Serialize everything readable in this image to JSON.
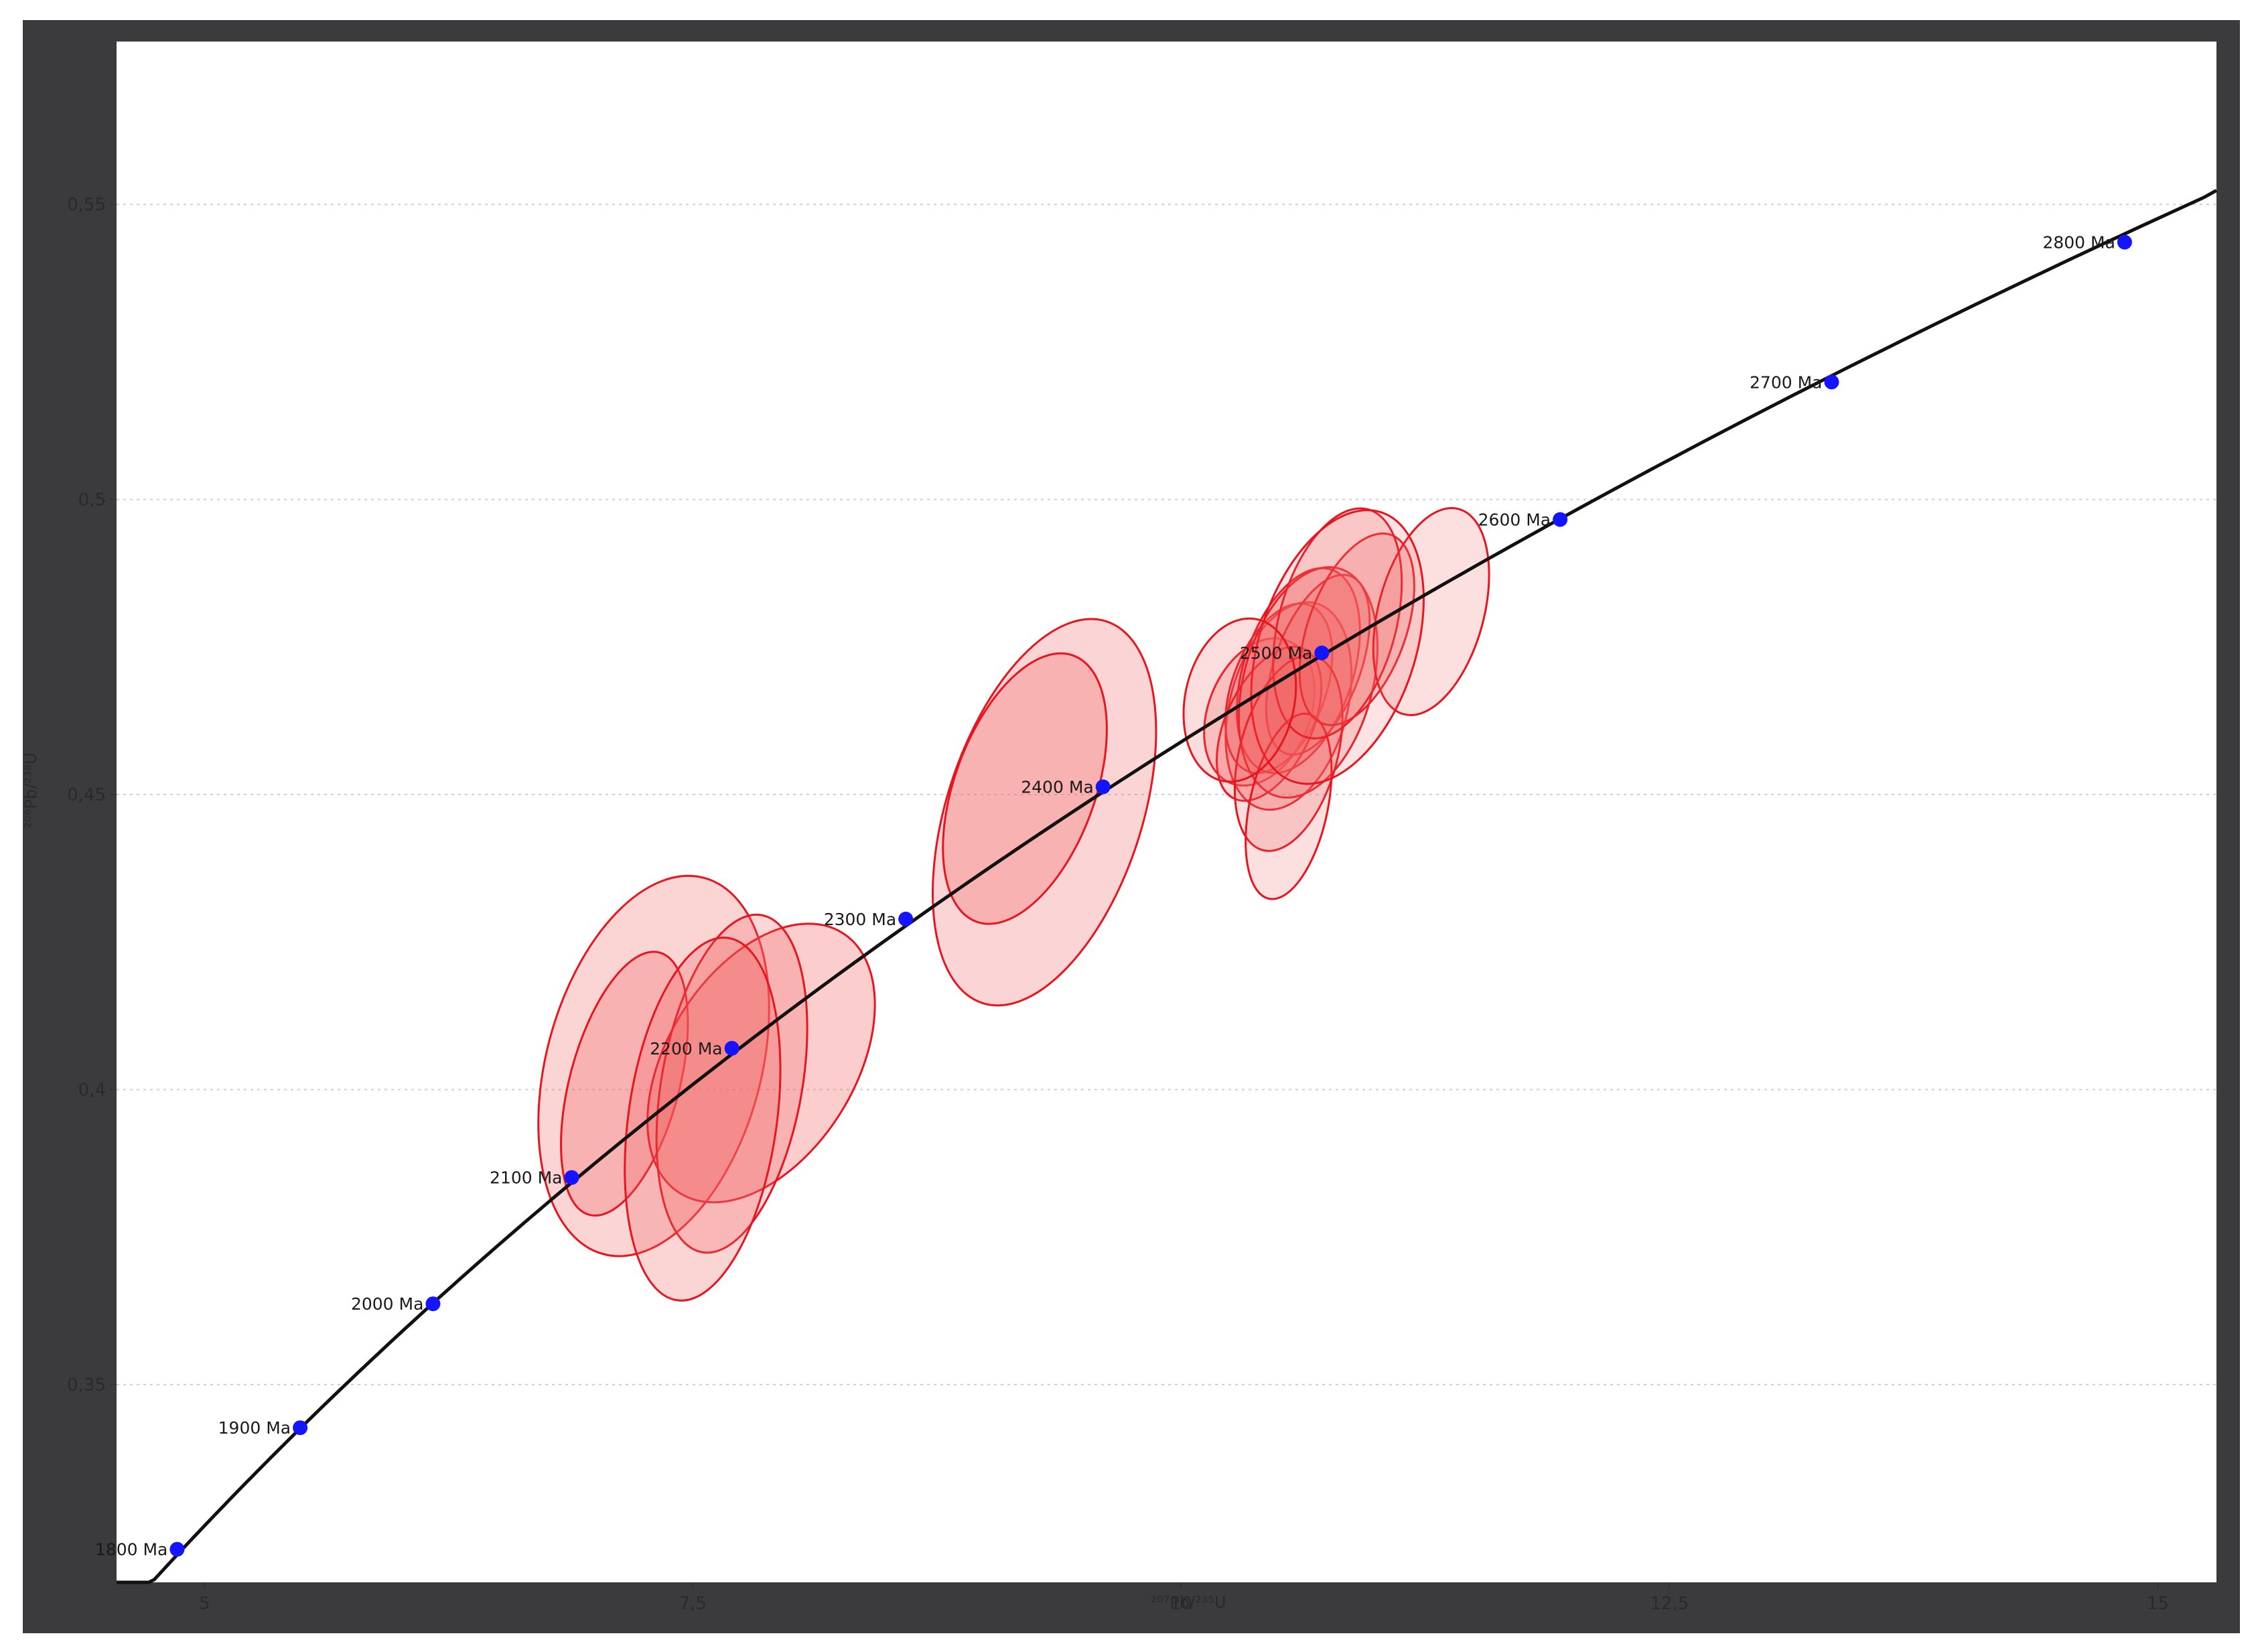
{
  "chart_data": {
    "type": "scatter",
    "title": "",
    "xlabel": "²⁰⁷Pb/²³⁵U",
    "ylabel": "²⁰⁶Pb/²³⁸U",
    "xlim": [
      4.55,
      15.3
    ],
    "ylim": [
      0.3165,
      0.5776
    ],
    "grid": true,
    "x_ticks": [
      {
        "v": 5,
        "label": "5"
      },
      {
        "v": 7.5,
        "label": "7,5"
      },
      {
        "v": 10,
        "label": "10"
      },
      {
        "v": 12.5,
        "label": "12,5"
      },
      {
        "v": 15,
        "label": "15"
      }
    ],
    "y_ticks": [
      {
        "v": 0.35,
        "label": "0,35"
      },
      {
        "v": 0.4,
        "label": "0,4"
      },
      {
        "v": 0.45,
        "label": "0,45"
      },
      {
        "v": 0.5,
        "label": "0,5"
      },
      {
        "v": 0.55,
        "label": "0,55"
      }
    ],
    "concordia_ages": [
      {
        "label": "1800 Ma",
        "x": 4.86,
        "y": 0.3221
      },
      {
        "label": "1900 Ma",
        "x": 5.49,
        "y": 0.3427
      },
      {
        "label": "2000 Ma",
        "x": 6.17,
        "y": 0.3637
      },
      {
        "label": "2100 Ma",
        "x": 6.88,
        "y": 0.3851
      },
      {
        "label": "2200 Ma",
        "x": 7.7,
        "y": 0.407
      },
      {
        "label": "2300 Ma",
        "x": 8.59,
        "y": 0.4289
      },
      {
        "label": "2400 Ma",
        "x": 9.6,
        "y": 0.4513
      },
      {
        "label": "2500 Ma",
        "x": 10.72,
        "y": 0.474
      },
      {
        "label": "2600 Ma",
        "x": 11.94,
        "y": 0.4966
      },
      {
        "label": "2700 Ma",
        "x": 13.33,
        "y": 0.5199
      },
      {
        "label": "2800 Ma",
        "x": 14.83,
        "y": 0.5436
      }
    ],
    "ellipses": [
      {
        "x": 7.3,
        "y": 0.404,
        "rx": 0.55,
        "ry": 0.033,
        "rot": 15,
        "shade": 0.28
      },
      {
        "x": 7.15,
        "y": 0.401,
        "rx": 0.28,
        "ry": 0.023,
        "rot": 15,
        "shade": 0.3
      },
      {
        "x": 7.85,
        "y": 0.4045,
        "rx": 0.48,
        "ry": 0.026,
        "rot": 32,
        "shade": 0.32
      },
      {
        "x": 7.7,
        "y": 0.401,
        "rx": 0.36,
        "ry": 0.029,
        "rot": 10,
        "shade": 0.26
      },
      {
        "x": 7.55,
        "y": 0.395,
        "rx": 0.38,
        "ry": 0.031,
        "rot": 8,
        "shade": 0.28
      },
      {
        "x": 9.3,
        "y": 0.447,
        "rx": 0.5,
        "ry": 0.034,
        "rot": 18,
        "shade": 0.27
      },
      {
        "x": 9.2,
        "y": 0.451,
        "rx": 0.36,
        "ry": 0.024,
        "rot": 20,
        "shade": 0.3
      },
      {
        "x": 10.4,
        "y": 0.464,
        "rx": 0.26,
        "ry": 0.013,
        "rot": 22,
        "shade": 0.25
      },
      {
        "x": 10.55,
        "y": 0.465,
        "rx": 0.3,
        "ry": 0.018,
        "rot": 15,
        "shade": 0.25
      },
      {
        "x": 10.5,
        "y": 0.468,
        "rx": 0.24,
        "ry": 0.015,
        "rot": 20,
        "shade": 0.25
      },
      {
        "x": 10.6,
        "y": 0.471,
        "rx": 0.28,
        "ry": 0.018,
        "rot": 18,
        "shade": 0.25
      },
      {
        "x": 10.7,
        "y": 0.472,
        "rx": 0.22,
        "ry": 0.016,
        "rot": 20,
        "shade": 0.25
      },
      {
        "x": 10.45,
        "y": 0.462,
        "rx": 0.22,
        "ry": 0.014,
        "rot": 25,
        "shade": 0.25
      },
      {
        "x": 10.65,
        "y": 0.469,
        "rx": 0.33,
        "ry": 0.02,
        "rot": 15,
        "shade": 0.22
      },
      {
        "x": 10.55,
        "y": 0.457,
        "rx": 0.25,
        "ry": 0.017,
        "rot": 15,
        "shade": 0.22
      },
      {
        "x": 10.55,
        "y": 0.448,
        "rx": 0.2,
        "ry": 0.016,
        "rot": 12,
        "shade": 0.2
      },
      {
        "x": 10.9,
        "y": 0.478,
        "rx": 0.25,
        "ry": 0.017,
        "rot": 20,
        "shade": 0.24
      },
      {
        "x": 10.8,
        "y": 0.479,
        "rx": 0.3,
        "ry": 0.02,
        "rot": 15,
        "shade": 0.22
      },
      {
        "x": 11.28,
        "y": 0.481,
        "rx": 0.27,
        "ry": 0.018,
        "rot": 15,
        "shade": 0.2
      },
      {
        "x": 10.8,
        "y": 0.475,
        "rx": 0.4,
        "ry": 0.024,
        "rot": 18,
        "shade": 0.18
      },
      {
        "x": 10.3,
        "y": 0.466,
        "rx": 0.28,
        "ry": 0.014,
        "rot": 12,
        "shade": 0.22
      }
    ],
    "colors": {
      "plot_bg": "#ffffff",
      "frame": "#3b3b3d",
      "curve": "#111111",
      "age_marker": "#1414ff",
      "ellipse_stroke": "#e8141e",
      "ellipse_fill": "#f26464"
    }
  }
}
